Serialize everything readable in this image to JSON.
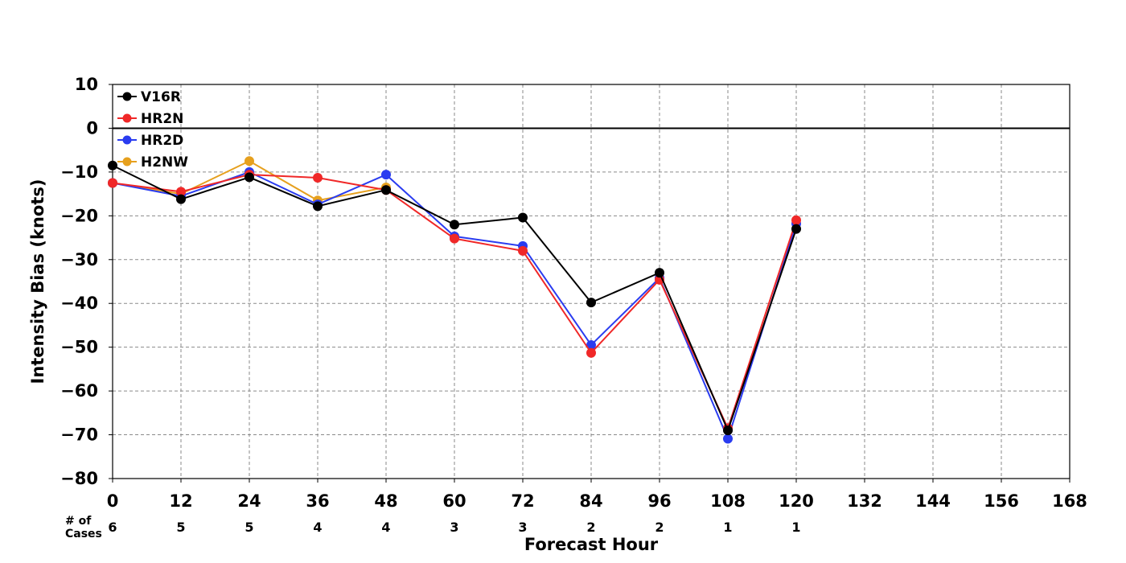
{
  "chart_data": {
    "type": "line",
    "xlabel": "Forecast Hour",
    "ylabel": "Intensity Bias (knots)",
    "xlim": [
      0,
      168
    ],
    "ylim": [
      -80,
      10
    ],
    "x_ticks": [
      0,
      12,
      24,
      36,
      48,
      60,
      72,
      84,
      96,
      108,
      120,
      132,
      144,
      156,
      168
    ],
    "y_ticks": [
      10,
      0,
      -10,
      -20,
      -30,
      -40,
      -50,
      -60,
      -70,
      -80
    ],
    "x_tick_labels": [
      "0",
      "12",
      "24",
      "36",
      "48",
      "60",
      "72",
      "84",
      "96",
      "108",
      "120",
      "132",
      "144",
      "156",
      "168"
    ],
    "y_tick_labels": [
      "10",
      "0",
      "−10",
      "−20",
      "−30",
      "−40",
      "−50",
      "−60",
      "−70",
      "−80"
    ],
    "grid": true,
    "zero_line": true,
    "legend_position": "top-left",
    "cases_label_line1": "# of",
    "cases_label_line2": "Cases",
    "cases": {
      "x": [
        0,
        12,
        24,
        36,
        48,
        60,
        72,
        84,
        96,
        108,
        120
      ],
      "labels": [
        "6",
        "5",
        "5",
        "4",
        "4",
        "3",
        "3",
        "2",
        "2",
        "1",
        "1"
      ]
    },
    "series": [
      {
        "name": "V16R",
        "color": "#000000",
        "x": [
          0,
          12,
          24,
          36,
          48,
          60,
          72,
          84,
          96,
          108,
          120
        ],
        "y": [
          -8.5,
          -16.2,
          -11.2,
          -17.8,
          -14.1,
          -22.0,
          -20.4,
          -39.8,
          -33.0,
          -69.0,
          -23.0
        ]
      },
      {
        "name": "HR2N",
        "color": "#f02828",
        "x": [
          0,
          12,
          24,
          36,
          48,
          60,
          72,
          84,
          96,
          108,
          120
        ],
        "y": [
          -12.5,
          -14.5,
          -10.6,
          -11.3,
          -14.1,
          -25.2,
          -28.0,
          -51.3,
          -34.6,
          -68.5,
          -21.0
        ]
      },
      {
        "name": "HR2D",
        "color": "#2a3cf0",
        "x": [
          0,
          12,
          24,
          36,
          48,
          60,
          72,
          84,
          96,
          108,
          120
        ],
        "y": [
          -12.5,
          -15.5,
          -10.0,
          -17.4,
          -10.6,
          -24.7,
          -26.9,
          -49.5,
          -34.2,
          -70.9,
          -21.8
        ]
      },
      {
        "name": "H2NW",
        "color": "#e6a01e",
        "x": [
          0,
          12,
          24,
          36,
          48
        ],
        "y": [
          -12.5,
          -15.0,
          -7.5,
          -16.5,
          -13.5
        ]
      }
    ]
  }
}
